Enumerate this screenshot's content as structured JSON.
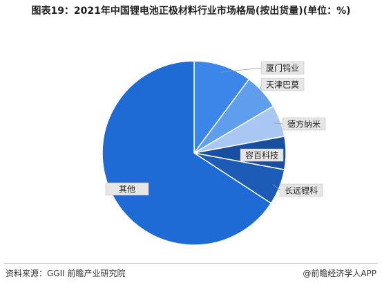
{
  "chart_data": {
    "type": "pie",
    "title": "图表19：2021年中国锂电池正极材料行业市场格局(按出货量)(单位：%)",
    "categories": [
      "厦门钨业",
      "天津巴莫",
      "德方纳米",
      "容百科技",
      "长远锂科",
      "其他"
    ],
    "values": [
      10.2,
      6.3,
      5.6,
      5.8,
      6.3,
      65.8
    ],
    "colors": [
      "#3b86e8",
      "#5f9eec",
      "#a8c8f3",
      "#1a4f9f",
      "#1d5cb6",
      "#1f6bd6"
    ],
    "source": "资料来源：GGII 前瞻产业研究院",
    "brand": "@前瞻经济学人APP"
  }
}
